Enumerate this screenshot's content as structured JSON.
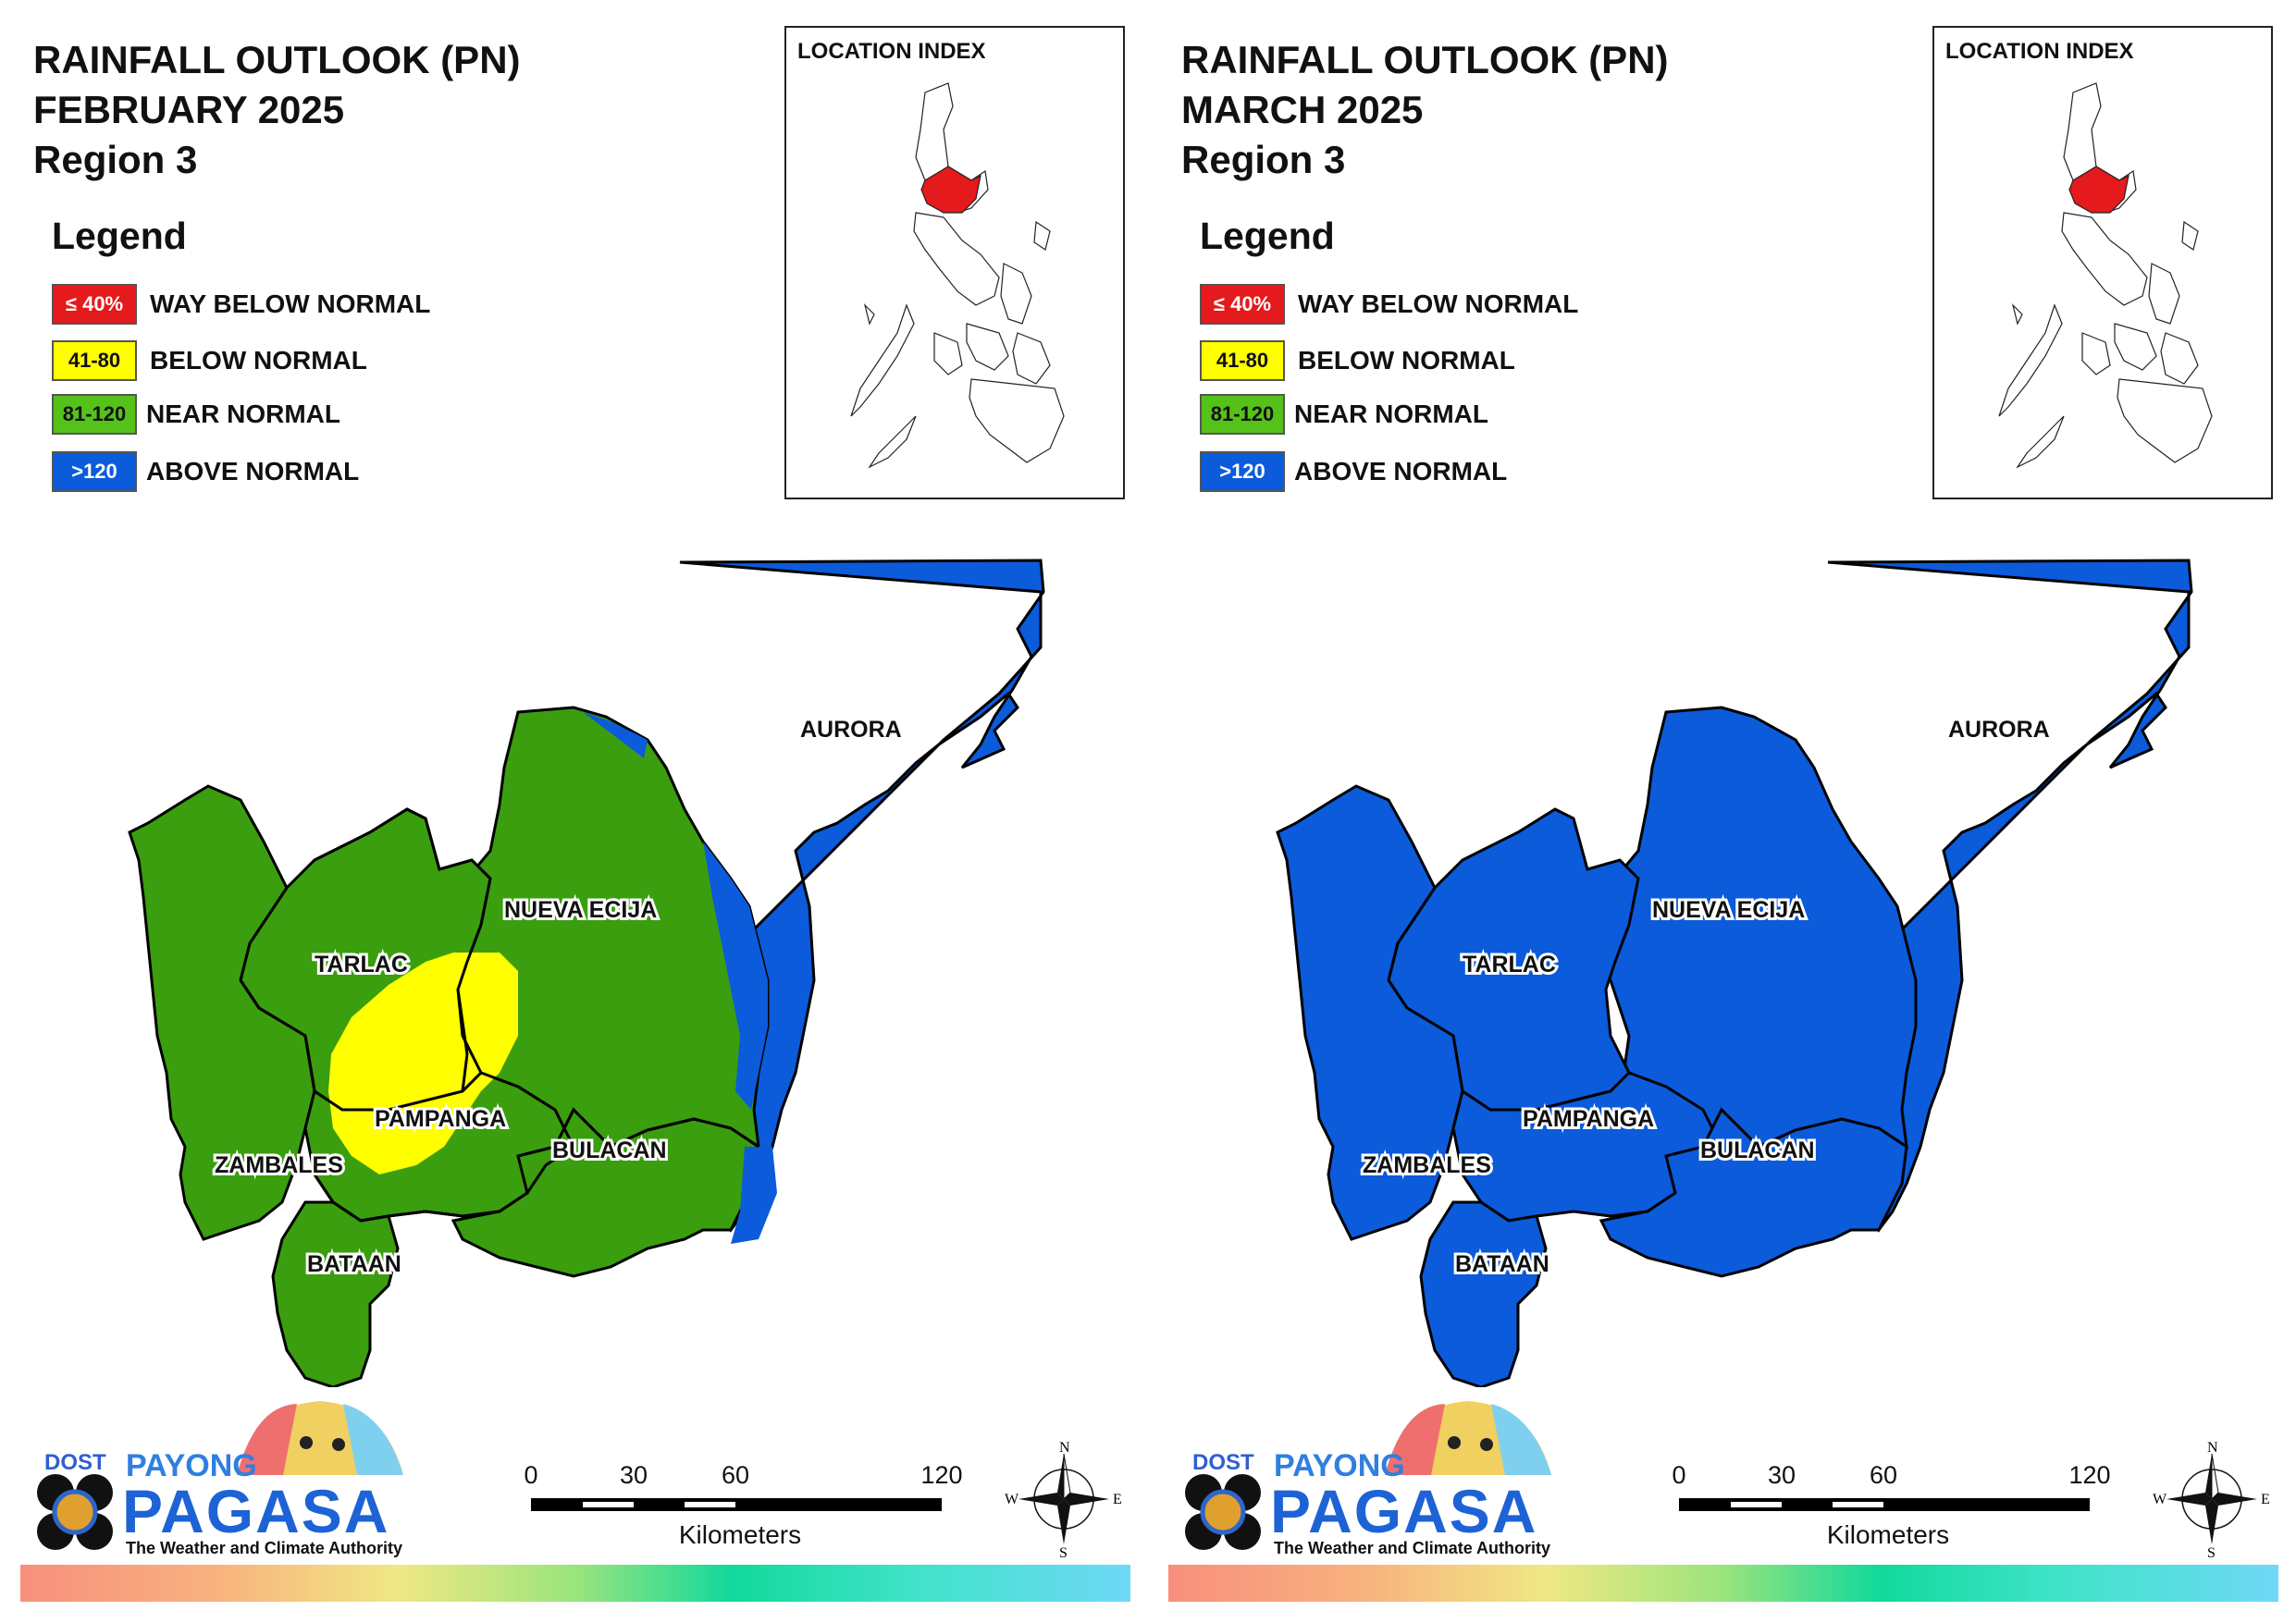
{
  "colors": {
    "way_below": "#e41a1c",
    "below": "#ffff00",
    "near": "#3a9e0e",
    "above": "#0b5bdb"
  },
  "panels": [
    {
      "title_line1": "RAINFALL OUTLOOK (PN)",
      "title_line2": "FEBRUARY 2025",
      "title_line3": "Region 3",
      "legend_title": "Legend",
      "legend": [
        {
          "swatch": "≤ 40%",
          "label": "WAY BELOW NORMAL",
          "color": "#e41a1c"
        },
        {
          "swatch": "41-80",
          "label": "BELOW NORMAL",
          "color": "#ffff00"
        },
        {
          "swatch": "81-120",
          "label": "NEAR NORMAL",
          "color": "#3a9e0e"
        },
        {
          "swatch": ">120",
          "label": "ABOVE NORMAL",
          "color": "#0b5bdb"
        }
      ],
      "inset_title": "LOCATION INDEX",
      "provinces": {
        "aurora": "AURORA",
        "nueva_ecija": "NUEVA ECIJA",
        "tarlac": "TARLAC",
        "pampanga": "PAMPANGA",
        "bulacan": "BULACAN",
        "zambales": "ZAMBALES",
        "bataan": "BATAAN"
      },
      "region_categories": {
        "aurora": "above",
        "nueva_ecija": "near",
        "tarlac": "near",
        "pampanga": "near",
        "bulacan": "near",
        "zambales": "near",
        "bataan": "near",
        "central_patch": "below"
      },
      "logo": {
        "dost": "DOST",
        "payong": "PAYONG",
        "pagasa": "PAGASA",
        "tagline": "The Weather and Climate Authority"
      },
      "scale": {
        "ticks": [
          "0",
          "30",
          "60",
          "120"
        ],
        "unit": "Kilometers"
      },
      "compass": {
        "n": "N",
        "s": "S",
        "e": "E",
        "w": "W"
      }
    },
    {
      "title_line1": "RAINFALL OUTLOOK (PN)",
      "title_line2": "MARCH 2025",
      "title_line3": "Region 3",
      "legend_title": "Legend",
      "legend": [
        {
          "swatch": "≤ 40%",
          "label": "WAY BELOW NORMAL",
          "color": "#e41a1c"
        },
        {
          "swatch": "41-80",
          "label": "BELOW NORMAL",
          "color": "#ffff00"
        },
        {
          "swatch": "81-120",
          "label": "NEAR NORMAL",
          "color": "#3a9e0e"
        },
        {
          "swatch": ">120",
          "label": "ABOVE NORMAL",
          "color": "#0b5bdb"
        }
      ],
      "inset_title": "LOCATION INDEX",
      "provinces": {
        "aurora": "AURORA",
        "nueva_ecija": "NUEVA ECIJA",
        "tarlac": "TARLAC",
        "pampanga": "PAMPANGA",
        "bulacan": "BULACAN",
        "zambales": "ZAMBALES",
        "bataan": "BATAAN"
      },
      "region_categories": {
        "aurora": "above",
        "nueva_ecija": "above",
        "tarlac": "above",
        "pampanga": "above",
        "bulacan": "above",
        "zambales": "above",
        "bataan": "above"
      },
      "logo": {
        "dost": "DOST",
        "payong": "PAYONG",
        "pagasa": "PAGASA",
        "tagline": "The Weather and Climate Authority"
      },
      "scale": {
        "ticks": [
          "0",
          "30",
          "60",
          "120"
        ],
        "unit": "Kilometers"
      },
      "compass": {
        "n": "N",
        "s": "S",
        "e": "E",
        "w": "W"
      }
    }
  ]
}
